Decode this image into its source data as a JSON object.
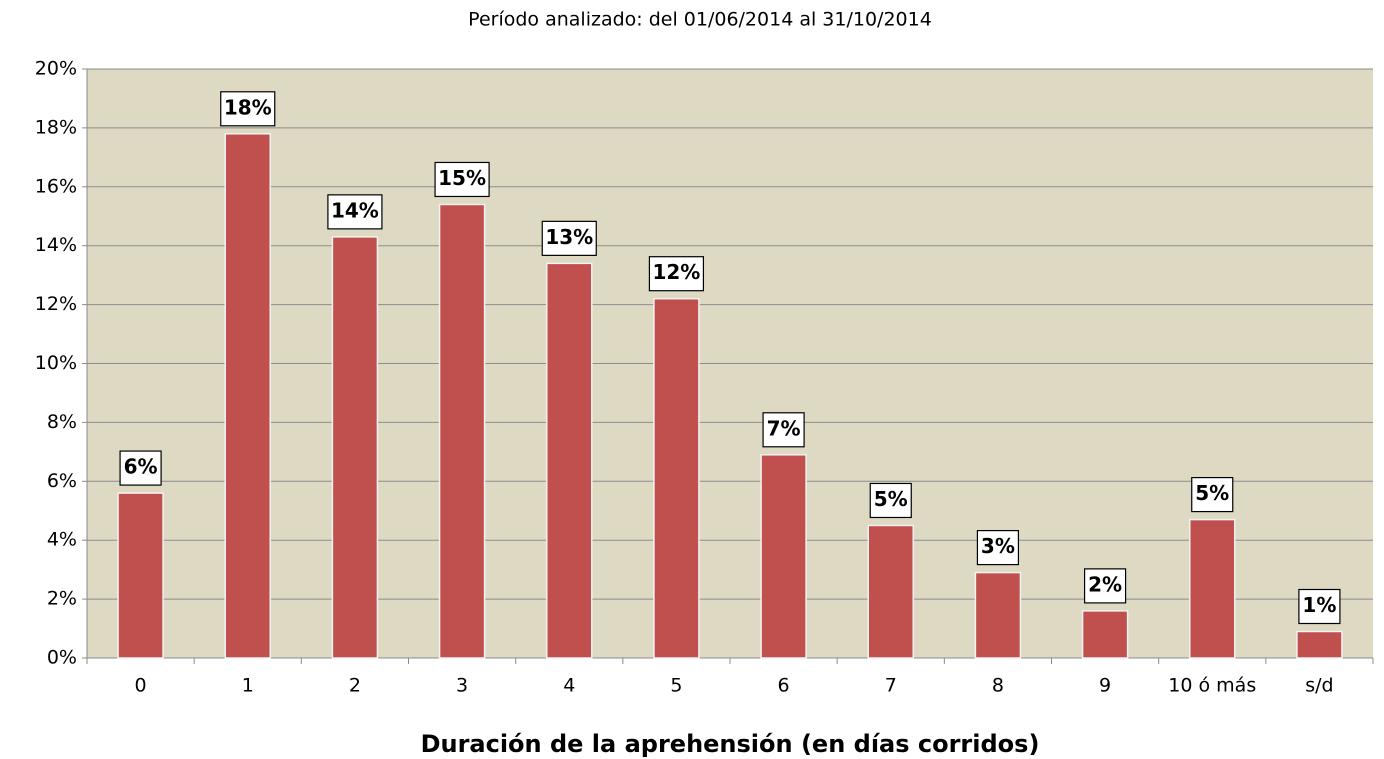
{
  "chart_data": {
    "type": "bar",
    "title": "Período analizado: del 01/06/2014 al 31/10/2014",
    "x_label": "Duración de la aprehensión (en días corridos)",
    "categories": [
      "0",
      "1",
      "2",
      "3",
      "4",
      "5",
      "6",
      "7",
      "8",
      "9",
      "10 ó más",
      "s/d"
    ],
    "values": [
      5.6,
      17.8,
      14.3,
      15.4,
      13.4,
      12.2,
      6.9,
      4.5,
      2.9,
      1.6,
      4.7,
      0.9
    ],
    "value_labels": [
      "6%",
      "18%",
      "14%",
      "15%",
      "13%",
      "12%",
      "7%",
      "5%",
      "3%",
      "2%",
      "5%",
      "1%"
    ],
    "color": "#c0504d",
    "ylim": [
      0,
      20
    ],
    "yticks": [
      {
        "value": 0,
        "label": "0%"
      },
      {
        "value": 2,
        "label": "2%"
      },
      {
        "value": 4,
        "label": "4%"
      },
      {
        "value": 6,
        "label": "6%"
      },
      {
        "value": 8,
        "label": "8%"
      },
      {
        "value": 10,
        "label": "10%"
      },
      {
        "value": 12,
        "label": "12%"
      },
      {
        "value": 14,
        "label": "14%"
      },
      {
        "value": 16,
        "label": "16%"
      },
      {
        "value": 18,
        "label": "18%"
      },
      {
        "value": 20,
        "label": "20%"
      }
    ],
    "grid": true
  }
}
